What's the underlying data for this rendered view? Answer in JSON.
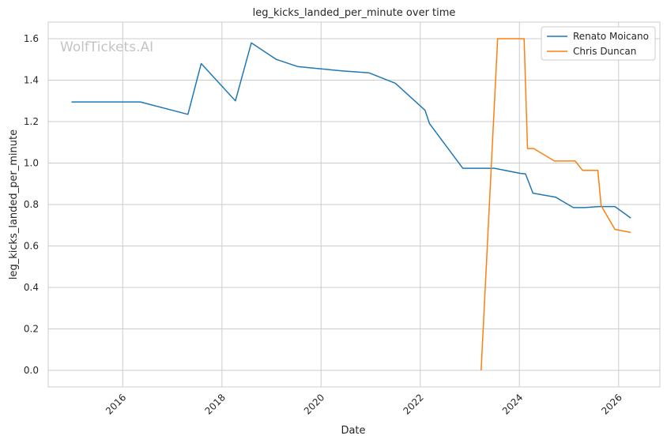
{
  "chart_data": {
    "type": "line",
    "title": "leg_kicks_landed_per_minute over time",
    "xlabel": "Date",
    "ylabel": "leg_kicks_landed_per_minute",
    "watermark": "WolfTickets.AI",
    "x_ticks": [
      "2016",
      "2018",
      "2020",
      "2022",
      "2024",
      "2026"
    ],
    "y_ticks": [
      "0.0",
      "0.2",
      "0.4",
      "0.6",
      "0.8",
      "1.0",
      "1.2",
      "1.4",
      "1.6"
    ],
    "xlim": [
      "2014-07-01",
      "2026-11-01"
    ],
    "ylim": [
      -0.08,
      1.68
    ],
    "grid": true,
    "legend_position": "top-right",
    "series": [
      {
        "name": "Renato Moicano",
        "color": "#1f77b4",
        "points": [
          [
            "2014-12-20",
            1.295
          ],
          [
            "2016-05-10",
            1.295
          ],
          [
            "2017-04-25",
            1.235
          ],
          [
            "2017-08-01",
            1.48
          ],
          [
            "2018-04-10",
            1.3
          ],
          [
            "2018-08-05",
            1.58
          ],
          [
            "2019-02-05",
            1.5
          ],
          [
            "2019-07-15",
            1.465
          ],
          [
            "2020-06-01",
            1.445
          ],
          [
            "2020-12-20",
            1.435
          ],
          [
            "2021-07-01",
            1.385
          ],
          [
            "2022-02-05",
            1.255
          ],
          [
            "2022-03-10",
            1.19
          ],
          [
            "2022-11-10",
            0.975
          ],
          [
            "2023-07-01",
            0.975
          ],
          [
            "2024-01-10",
            0.95
          ],
          [
            "2024-02-15",
            0.948
          ],
          [
            "2024-04-10",
            0.855
          ],
          [
            "2024-09-25",
            0.835
          ],
          [
            "2025-02-01",
            0.785
          ],
          [
            "2025-04-25",
            0.785
          ],
          [
            "2025-08-05",
            0.79
          ],
          [
            "2025-12-05",
            0.79
          ],
          [
            "2026-04-01",
            0.735
          ]
        ]
      },
      {
        "name": "Chris Duncan",
        "color": "#ff7f0e",
        "points": [
          [
            "2023-03-25",
            0.0
          ],
          [
            "2023-07-25",
            1.6
          ],
          [
            "2024-01-20",
            1.6
          ],
          [
            "2024-02-05",
            1.6
          ],
          [
            "2024-03-01",
            1.07
          ],
          [
            "2024-04-15",
            1.07
          ],
          [
            "2024-09-15",
            1.01
          ],
          [
            "2025-02-15",
            1.01
          ],
          [
            "2025-04-10",
            0.965
          ],
          [
            "2025-08-01",
            0.965
          ],
          [
            "2025-08-25",
            0.795
          ],
          [
            "2025-12-05",
            0.68
          ],
          [
            "2026-04-01",
            0.665
          ]
        ]
      }
    ]
  }
}
